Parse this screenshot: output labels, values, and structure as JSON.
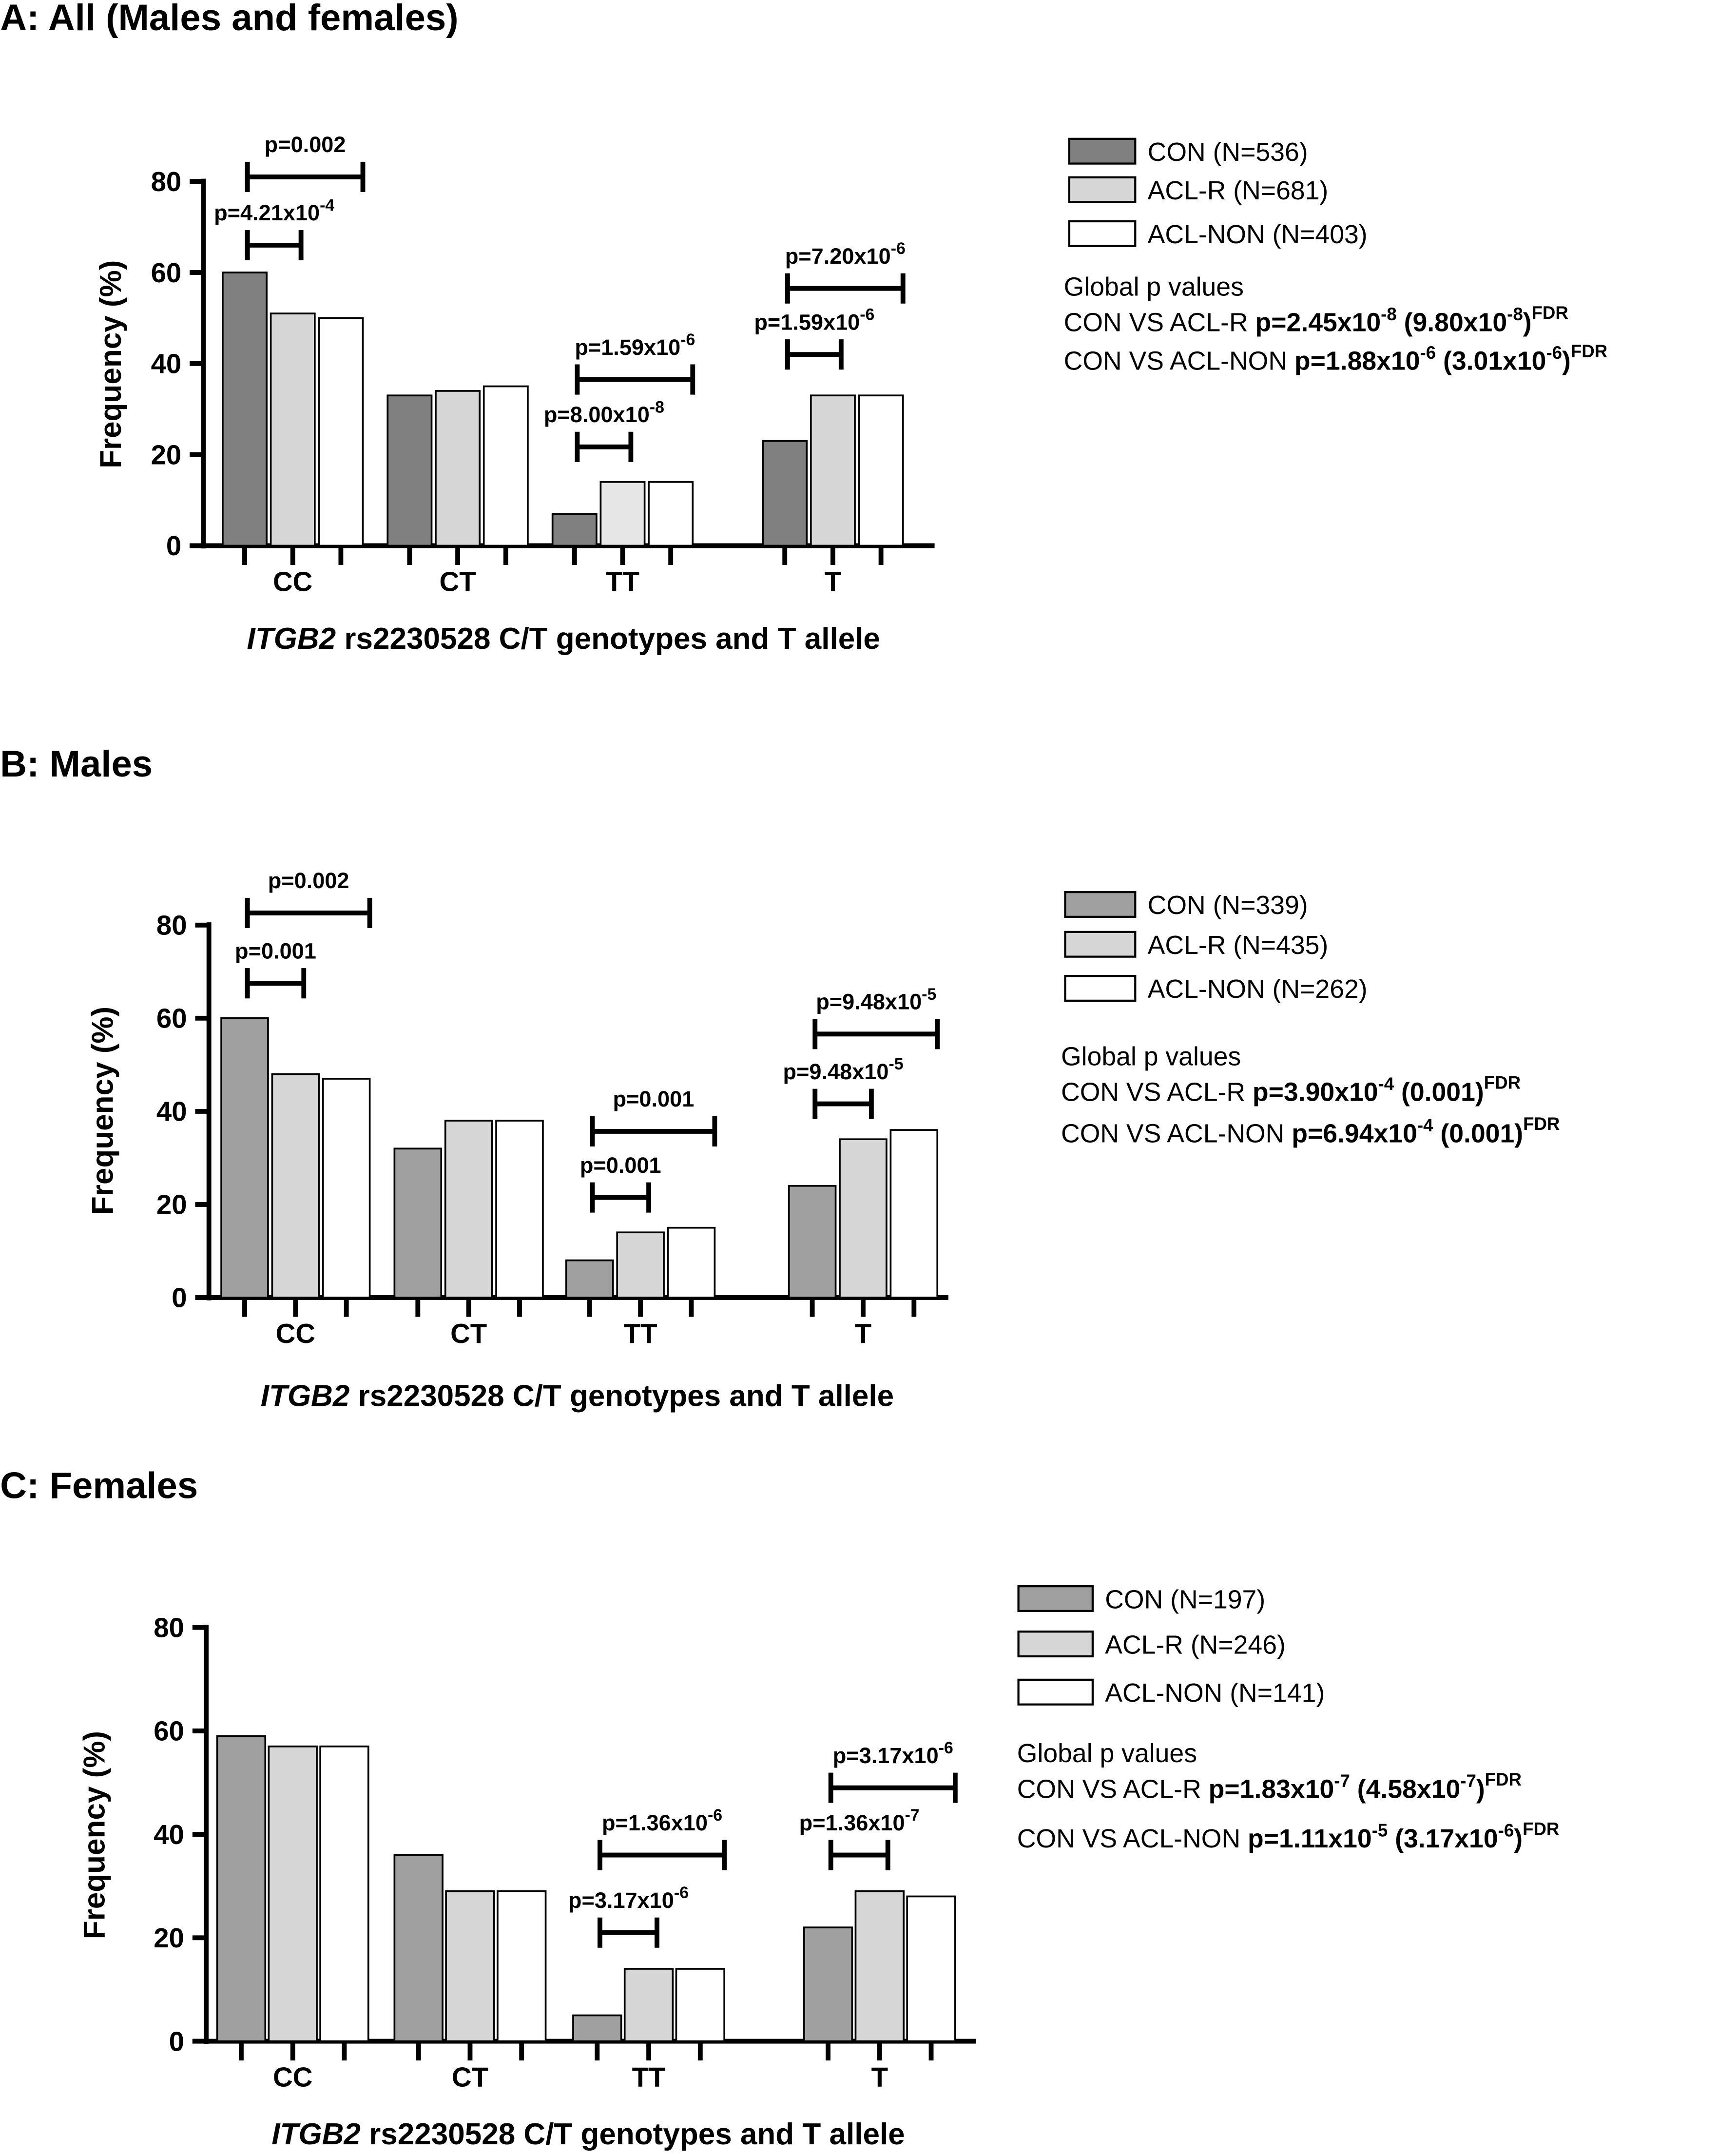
{
  "chart_data": [
    {
      "type": "bar",
      "title": "A: All (Males and females)",
      "xlabel_italic": "ITGB2",
      "xlabel": "rs2230528 C/T genotypes and T allele",
      "ylabel": "Frequency (%)",
      "ylim": [
        0,
        80
      ],
      "yticks": [
        "0",
        "20",
        "40",
        "60",
        "80"
      ],
      "categories": [
        "CC",
        "CT",
        "TT",
        "T"
      ],
      "series": [
        {
          "name": "CON (N=536)",
          "color": "#808080",
          "values": [
            60,
            33,
            7,
            23
          ]
        },
        {
          "name": "ACL-R (N=681)",
          "color": "#d6d6d6",
          "values": [
            51,
            34,
            14,
            33
          ]
        },
        {
          "name": "ACL-NON (N=403)",
          "color": "#ffffff",
          "values": [
            50,
            35,
            14,
            33
          ]
        }
      ],
      "annotations": [
        {
          "group": 0,
          "from": 0,
          "to": 2,
          "p": "p=0.002",
          "exp": ""
        },
        {
          "group": 0,
          "from": 0,
          "to": 1,
          "p": "p=4.21x10",
          "exp": "-4"
        },
        {
          "group": 2,
          "from": 0,
          "to": 2,
          "p": "p=1.59x10",
          "exp": "-6"
        },
        {
          "group": 2,
          "from": 0,
          "to": 1,
          "p": "p=8.00x10",
          "exp": "-8"
        },
        {
          "group": 3,
          "from": 0,
          "to": 2,
          "p": "p=7.20x10",
          "exp": "-6"
        },
        {
          "group": 3,
          "from": 0,
          "to": 1,
          "p": "p=1.59x10",
          "exp": "-6"
        }
      ],
      "global_title": "Global p values",
      "global": [
        {
          "label": "CON VS ACL-R",
          "p": "p=2.45x10",
          "p_exp": "-8",
          "fdr": "9.80x10",
          "fdr_exp": "-8",
          "fdr_tag": "FDR"
        },
        {
          "label": "CON VS ACL-NON",
          "p": "p=1.88x10",
          "p_exp": "-6",
          "fdr": "3.01x10",
          "fdr_exp": "-6",
          "fdr_tag": "FDR"
        }
      ]
    },
    {
      "type": "bar",
      "title": "B: Males",
      "xlabel_italic": "ITGB2",
      "xlabel": "rs2230528 C/T genotypes and T allele",
      "ylabel": "Frequency (%)",
      "ylim": [
        0,
        80
      ],
      "yticks": [
        "0",
        "20",
        "40",
        "60",
        "80"
      ],
      "categories": [
        "CC",
        "CT",
        "TT",
        "T"
      ],
      "series": [
        {
          "name": "CON (N=339)",
          "color": "#a0a0a0",
          "values": [
            60,
            32,
            8,
            24
          ]
        },
        {
          "name": "ACL-R (N=435)",
          "color": "#d6d6d6",
          "values": [
            48,
            38,
            14,
            34
          ]
        },
        {
          "name": "ACL-NON (N=262)",
          "color": "#ffffff",
          "values": [
            47,
            38,
            15,
            36
          ]
        }
      ],
      "annotations": [
        {
          "group": 0,
          "from": 0,
          "to": 2,
          "p": "p=0.002",
          "exp": ""
        },
        {
          "group": 0,
          "from": 0,
          "to": 1,
          "p": "p=0.001",
          "exp": ""
        },
        {
          "group": 2,
          "from": 0,
          "to": 2,
          "p": "p=0.001",
          "exp": ""
        },
        {
          "group": 2,
          "from": 0,
          "to": 1,
          "p": "p=0.001",
          "exp": ""
        },
        {
          "group": 3,
          "from": 0,
          "to": 2,
          "p": "p=9.48x10",
          "exp": "-5"
        },
        {
          "group": 3,
          "from": 0,
          "to": 1,
          "p": "p=9.48x10",
          "exp": "-5"
        }
      ],
      "global_title": "Global p values",
      "global": [
        {
          "label": "CON VS ACL-R",
          "p": "p=3.90x10",
          "p_exp": "-4",
          "fdr": "0.001",
          "fdr_exp": "",
          "fdr_tag": "FDR"
        },
        {
          "label": "CON VS ACL-NON",
          "p": "p=6.94x10",
          "p_exp": "-4",
          "fdr": "0.001",
          "fdr_exp": "",
          "fdr_tag": "FDR"
        }
      ]
    },
    {
      "type": "bar",
      "title": "C: Females",
      "xlabel_italic": "ITGB2",
      "xlabel": "rs2230528 C/T genotypes and T allele",
      "ylabel": "Frequency (%)",
      "ylim": [
        0,
        80
      ],
      "yticks": [
        "0",
        "20",
        "40",
        "60",
        "80"
      ],
      "categories": [
        "CC",
        "CT",
        "TT",
        "T"
      ],
      "series": [
        {
          "name": "CON (N=197)",
          "color": "#a0a0a0",
          "values": [
            59,
            36,
            5,
            22
          ]
        },
        {
          "name": "ACL-R (N=246)",
          "color": "#d6d6d6",
          "values": [
            57,
            29,
            14,
            29
          ]
        },
        {
          "name": "ACL-NON (N=141)",
          "color": "#ffffff",
          "values": [
            57,
            29,
            14,
            28
          ]
        }
      ],
      "annotations": [
        {
          "group": 2,
          "from": 0,
          "to": 2,
          "p": "p=1.36x10",
          "exp": "-6"
        },
        {
          "group": 2,
          "from": 0,
          "to": 1,
          "p": "p=3.17x10",
          "exp": "-6"
        },
        {
          "group": 3,
          "from": 0,
          "to": 2,
          "p": "p=3.17x10",
          "exp": "-6"
        },
        {
          "group": 3,
          "from": 0,
          "to": 1,
          "p": "p=1.36x10",
          "exp": "-7"
        }
      ],
      "global_title": "Global p values",
      "global": [
        {
          "label": "CON VS ACL-R",
          "p": "p=1.83x10",
          "p_exp": "-7",
          "fdr": "4.58x10",
          "fdr_exp": "-7",
          "fdr_tag": "FDR"
        },
        {
          "label": "CON VS ACL-NON",
          "p": "p=1.11x10",
          "p_exp": "-5",
          "fdr": "3.17x10",
          "fdr_exp": "-6",
          "fdr_tag": "FDR"
        }
      ]
    }
  ]
}
